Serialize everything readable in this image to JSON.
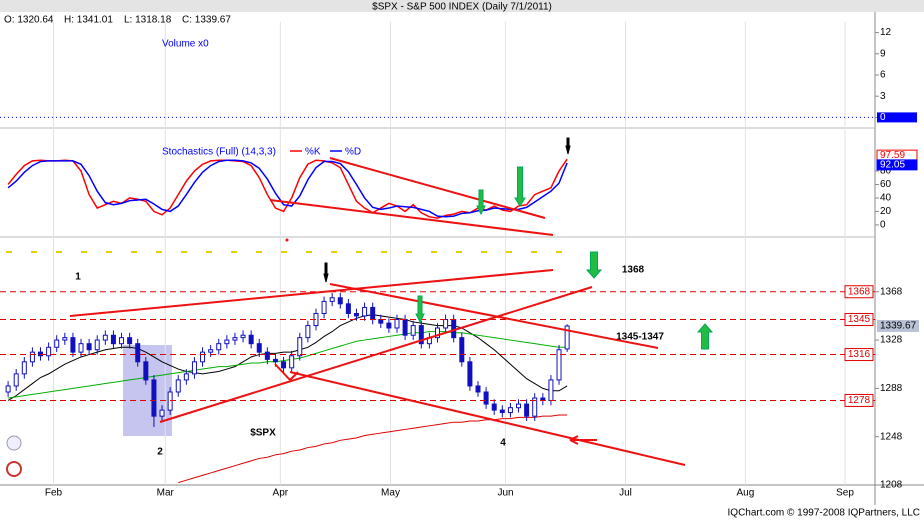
{
  "header": {
    "ohlc": [
      "O: 1320.64",
      "H: 1341.01",
      "L: 1318.18",
      "C: 1339.67"
    ],
    "title": "$SPX - S&P 500 INDEX (Daily 7/1/2011)",
    "footer": "IQChart.com © 1997-2008 IQPartners, LLC"
  },
  "chart_data": [
    {
      "type": "volume",
      "title": "Volume x0",
      "last": 0,
      "color": "#0000ff",
      "ylim": [
        -1.5,
        13.5
      ],
      "yticks": [
        0,
        3,
        6,
        9,
        12
      ]
    },
    {
      "type": "line",
      "title": "Stochastics (Full) (14,3,3)",
      "ylim": [
        -15,
        126
      ],
      "yticks": [
        0,
        20,
        40,
        60,
        80
      ],
      "series": [
        {
          "name": "%K",
          "color": "#ff0000",
          "values": [
            60,
            75,
            88,
            95,
            96,
            95,
            95,
            96,
            95,
            80,
            45,
            25,
            30,
            35,
            32,
            40,
            38,
            35,
            20,
            15,
            25,
            45,
            65,
            80,
            90,
            95,
            96,
            96,
            95,
            94,
            88,
            70,
            45,
            25,
            20,
            40,
            70,
            90,
            96,
            95,
            92,
            85,
            60,
            35,
            25,
            18,
            25,
            32,
            28,
            20,
            30,
            18,
            12,
            10,
            14,
            16,
            20,
            18,
            25,
            22,
            28,
            22,
            20,
            28,
            30,
            45,
            50,
            55,
            80,
            97.59
          ]
        },
        {
          "name": "%D",
          "color": "#0000ff",
          "values": [
            55,
            65,
            78,
            88,
            94,
            95,
            95,
            95,
            95,
            90,
            73,
            50,
            33,
            30,
            32,
            36,
            37,
            38,
            31,
            23,
            20,
            28,
            45,
            63,
            78,
            88,
            94,
            96,
            96,
            95,
            92,
            84,
            68,
            47,
            30,
            28,
            43,
            67,
            85,
            94,
            94,
            91,
            79,
            60,
            40,
            26,
            23,
            25,
            28,
            27,
            26,
            23,
            20,
            13,
            12,
            13,
            17,
            18,
            21,
            22,
            25,
            24,
            23,
            23,
            26,
            34,
            42,
            50,
            62,
            92.05
          ]
        }
      ]
    },
    {
      "type": "candlestick",
      "title": "$SPX",
      "color": "#1010c0",
      "xlim": [
        -1,
        107
      ],
      "xticks": [
        {
          "value": 5.6,
          "label": "Feb"
        },
        {
          "value": 19.4,
          "label": "Mar"
        },
        {
          "value": 33.6,
          "label": "Apr"
        },
        {
          "value": 47.2,
          "label": "May"
        },
        {
          "value": 61.4,
          "label": "Jun"
        },
        {
          "value": 76.2,
          "label": "Jul"
        },
        {
          "value": 91,
          "label": "Aug"
        },
        {
          "value": 103.3,
          "label": "Sep"
        }
      ],
      "ylim": [
        1208,
        1406.7
      ],
      "yticks": [
        1208,
        1248,
        1288,
        1328,
        1368
      ],
      "open": [
        1285,
        1290,
        1300,
        1310,
        1318,
        1315,
        1322,
        1328,
        1330,
        1318,
        1325,
        1320,
        1328,
        1332,
        1325,
        1330,
        1325,
        1310,
        1295,
        1265,
        1270,
        1285,
        1295,
        1300,
        1310,
        1318,
        1320,
        1325,
        1328,
        1330,
        1332,
        1325,
        1318,
        1312,
        1310,
        1305,
        1315,
        1330,
        1340,
        1350,
        1360,
        1363,
        1358,
        1350,
        1348,
        1355,
        1345,
        1342,
        1338,
        1345,
        1332,
        1340,
        1325,
        1330,
        1338,
        1345,
        1330,
        1310,
        1290,
        1285,
        1275,
        1270,
        1268,
        1272,
        1275,
        1265,
        1280,
        1278,
        1295,
        1320.64
      ],
      "high": [
        1294,
        1304,
        1314,
        1322,
        1322,
        1326,
        1332,
        1334,
        1334,
        1329,
        1329,
        1332,
        1336,
        1336,
        1334,
        1334,
        1329,
        1314,
        1299,
        1274,
        1289,
        1299,
        1304,
        1314,
        1322,
        1324,
        1329,
        1332,
        1334,
        1336,
        1336,
        1329,
        1322,
        1316,
        1314,
        1319,
        1334,
        1344,
        1354,
        1364,
        1367,
        1367,
        1362,
        1354,
        1359,
        1359,
        1349,
        1346,
        1349,
        1349,
        1344,
        1344,
        1334,
        1342,
        1349,
        1349,
        1334,
        1314,
        1294,
        1289,
        1279,
        1274,
        1276,
        1279,
        1279,
        1284,
        1284,
        1299,
        1324,
        1341.01
      ],
      "low": [
        1281,
        1286,
        1296,
        1306,
        1311,
        1311,
        1318,
        1324,
        1314,
        1314,
        1316,
        1316,
        1324,
        1321,
        1321,
        1321,
        1306,
        1291,
        1256,
        1261,
        1266,
        1281,
        1291,
        1296,
        1306,
        1314,
        1316,
        1321,
        1324,
        1326,
        1321,
        1314,
        1308,
        1306,
        1301,
        1301,
        1311,
        1326,
        1336,
        1346,
        1356,
        1354,
        1346,
        1344,
        1344,
        1341,
        1338,
        1334,
        1334,
        1328,
        1328,
        1321,
        1321,
        1326,
        1334,
        1326,
        1306,
        1286,
        1281,
        1271,
        1266,
        1264,
        1264,
        1268,
        1261,
        1261,
        1274,
        1274,
        1291,
        1318.18
      ],
      "close": [
        1290,
        1300,
        1310,
        1318,
        1315,
        1322,
        1328,
        1330,
        1318,
        1325,
        1320,
        1328,
        1332,
        1325,
        1330,
        1325,
        1310,
        1295,
        1265,
        1270,
        1285,
        1295,
        1300,
        1310,
        1318,
        1320,
        1325,
        1328,
        1330,
        1332,
        1325,
        1318,
        1312,
        1310,
        1305,
        1315,
        1330,
        1340,
        1350,
        1360,
        1363,
        1358,
        1350,
        1348,
        1355,
        1345,
        1342,
        1338,
        1345,
        1332,
        1340,
        1325,
        1330,
        1338,
        1345,
        1330,
        1310,
        1290,
        1285,
        1275,
        1270,
        1268,
        1272,
        1275,
        1265,
        1280,
        1278,
        1295,
        1320,
        1339.67
      ],
      "overlays": [
        {
          "color": "#000000",
          "values": [
            1278,
            1282,
            1287,
            1292,
            1297,
            1300,
            1304,
            1308,
            1311,
            1314,
            1316,
            1318,
            1320,
            1321,
            1322,
            1322,
            1321,
            1318,
            1314,
            1310,
            1307,
            1304,
            1302,
            1301,
            1300,
            1301,
            1302,
            1304,
            1306,
            1310,
            1314,
            1316,
            1317,
            1317,
            1318,
            1318,
            1320,
            1322,
            1326,
            1331,
            1335,
            1340,
            1343,
            1346,
            1348,
            1349,
            1348,
            1347,
            1346,
            1345,
            1343,
            1342,
            1341,
            1340,
            1340,
            1340,
            1338,
            1334,
            1330,
            1325,
            1320,
            1314,
            1308,
            1302,
            1296,
            1292,
            1288,
            1286,
            1286,
            1290
          ]
        },
        {
          "color": "#00b000",
          "values": [
            1280,
            1281,
            1282,
            1283,
            1284,
            1285,
            1286,
            1287,
            1288,
            1289,
            1290,
            1291,
            1292,
            1293,
            1294,
            1295,
            1296,
            1297,
            1298,
            1299,
            1300,
            1301,
            1302,
            1303,
            1304,
            1305,
            1306,
            1306,
            1307,
            1308,
            1309,
            1309,
            1310,
            1310,
            1311,
            1312,
            1313,
            1315,
            1317,
            1319,
            1321,
            1323,
            1325,
            1327,
            1328,
            1329,
            1330,
            1331,
            1332,
            1333,
            1334,
            1334,
            1335,
            1335,
            1335,
            1334,
            1334,
            1333,
            1332,
            1331,
            1330,
            1329,
            1328,
            1327,
            1326,
            1325,
            1324,
            1323,
            1322,
            1322
          ]
        },
        {
          "color": "#e00000",
          "values": [
            null,
            null,
            null,
            null,
            null,
            null,
            null,
            null,
            null,
            null,
            null,
            null,
            null,
            null,
            null,
            null,
            null,
            null,
            null,
            null,
            null,
            1210,
            1212,
            1214,
            1216,
            1218,
            1220,
            1222,
            1224,
            1226,
            1228,
            1230,
            1231,
            1233,
            1234,
            1236,
            1237,
            1239,
            1240,
            1242,
            1243,
            1245,
            1246,
            1247,
            1249,
            1250,
            1251,
            1252,
            1253,
            1254,
            1255,
            1256,
            1257,
            1258,
            1259,
            1260,
            1260,
            1261,
            1261,
            1262,
            1262,
            1263,
            1263,
            1264,
            1264,
            1264,
            1265,
            1265,
            1266,
            1266
          ]
        }
      ],
      "levels": [
        1368,
        1345,
        1316,
        1278
      ],
      "annotations": [
        "1",
        "2",
        "4",
        "$SPX",
        "1368",
        "1345-1347"
      ]
    }
  ]
}
